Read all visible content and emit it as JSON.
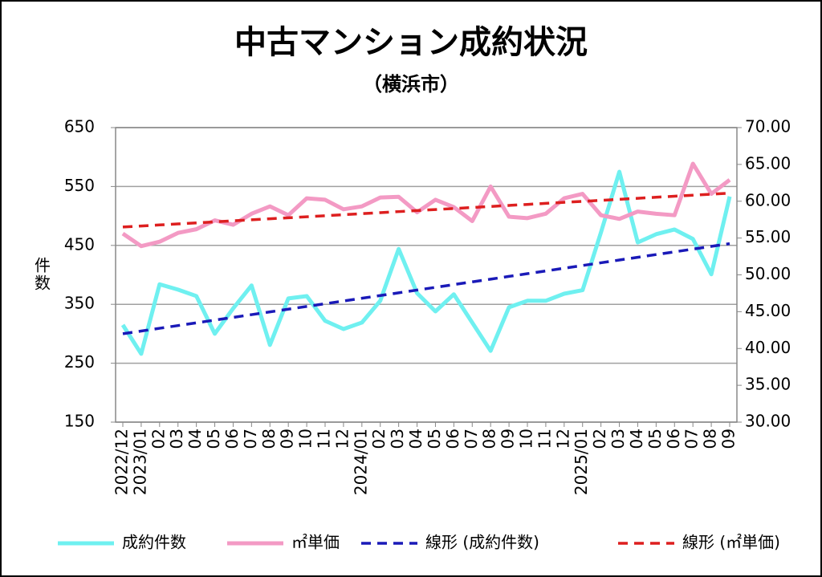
{
  "chart_data": {
    "type": "line",
    "title": "中古マンション成約状況",
    "subtitle": "（横浜市）",
    "y_label": "件数",
    "categories": [
      "2022/12",
      "2023/01",
      "02",
      "03",
      "04",
      "05",
      "06",
      "07",
      "08",
      "09",
      "10",
      "11",
      "12",
      "2024/01",
      "02",
      "03",
      "04",
      "05",
      "06",
      "07",
      "08",
      "09",
      "10",
      "11",
      "12",
      "2025/01",
      "02",
      "03",
      "04",
      "05",
      "06",
      "07",
      "08",
      "09"
    ],
    "series": [
      {
        "name": "成約件数",
        "color": "#6ff0f0",
        "style": "solid",
        "axis": "y",
        "values": [
          315,
          266,
          384,
          375,
          364,
          300,
          343,
          382,
          281,
          360,
          364,
          322,
          308,
          319,
          356,
          444,
          369,
          338,
          367,
          319,
          271,
          345,
          356,
          356,
          368,
          374,
          472,
          575,
          455,
          469,
          477,
          461,
          401,
          533
        ]
      },
      {
        "name": "㎡単価",
        "color": "#f39ac4",
        "style": "solid",
        "axis": "y2",
        "values": [
          55.6,
          53.9,
          54.5,
          55.7,
          56.2,
          57.4,
          56.8,
          58.3,
          59.3,
          58.1,
          60.4,
          60.2,
          58.9,
          59.3,
          60.5,
          60.6,
          58.5,
          60.2,
          59.2,
          57.3,
          62.0,
          57.9,
          57.7,
          58.3,
          60.4,
          61.0,
          58.1,
          57.6,
          58.6,
          58.3,
          58.1,
          65.1,
          61.0,
          62.9
        ]
      },
      {
        "name": "線形 (成約件数)",
        "color": "#1a1ab8",
        "style": "dashed",
        "axis": "y",
        "values": [
          300,
          304.6,
          309.3,
          313.9,
          318.5,
          323.2,
          327.8,
          332.5,
          337.1,
          341.7,
          346.4,
          351.0,
          355.6,
          360.3,
          364.9,
          369.5,
          374.2,
          378.8,
          383.5,
          388.1,
          392.7,
          397.4,
          402.0,
          406.6,
          411.3,
          415.9,
          420.5,
          425.2,
          429.8,
          434.5,
          439.1,
          443.7,
          448.4,
          453.0
        ]
      },
      {
        "name": "線形 (㎡単価)",
        "color": "#dd1f1f",
        "style": "dashed",
        "axis": "y2",
        "values": [
          56.5,
          56.64,
          56.78,
          56.92,
          57.06,
          57.2,
          57.34,
          57.48,
          57.62,
          57.75,
          57.89,
          58.03,
          58.17,
          58.31,
          58.45,
          58.59,
          58.73,
          58.87,
          59.01,
          59.15,
          59.29,
          59.43,
          59.57,
          59.71,
          59.85,
          59.98,
          60.12,
          60.26,
          60.4,
          60.54,
          60.68,
          60.82,
          60.96,
          61.1
        ]
      }
    ],
    "ylim": [
      150,
      650
    ],
    "yticks": [
      150,
      250,
      350,
      450,
      550,
      650
    ],
    "y2lim": [
      30,
      70
    ],
    "y2ticks": [
      {
        "value": 30,
        "label": "30.00"
      },
      {
        "value": 35,
        "label": "35.00"
      },
      {
        "value": 40,
        "label": "40.00"
      },
      {
        "value": 45,
        "label": "45.00"
      },
      {
        "value": 50,
        "label": "50.00"
      },
      {
        "value": 55,
        "label": "55.00"
      },
      {
        "value": 60,
        "label": "60.00"
      },
      {
        "value": 65,
        "label": "65.00"
      },
      {
        "value": 70,
        "label": "70.00"
      }
    ],
    "grid": true,
    "legend": "bottom"
  }
}
